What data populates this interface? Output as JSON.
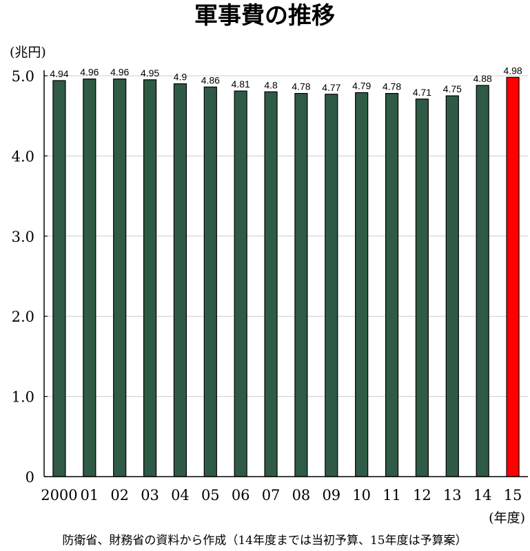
{
  "chart_data": {
    "type": "bar",
    "title": "軍事費の推移",
    "y_unit_label": "(兆円)",
    "x_unit_label": "(年度)",
    "source_note": "防衛省、財務省の資料から作成（14年度までは当初予算、15年度は予算案）",
    "categories": [
      "2000",
      "01",
      "02",
      "03",
      "04",
      "05",
      "06",
      "07",
      "08",
      "09",
      "10",
      "11",
      "12",
      "13",
      "14",
      "15"
    ],
    "values": [
      4.94,
      4.96,
      4.96,
      4.95,
      4.9,
      4.86,
      4.81,
      4.8,
      4.78,
      4.77,
      4.79,
      4.78,
      4.71,
      4.75,
      4.88,
      4.98
    ],
    "value_labels": [
      "4.94",
      "4.96",
      "4.96",
      "4.95",
      "4.9",
      "4.86",
      "4.81",
      "4.8",
      "4.78",
      "4.77",
      "4.79",
      "4.78",
      "4.71",
      "4.75",
      "4.88",
      "4.98"
    ],
    "ylim": [
      0,
      5
    ],
    "yticks": [
      0,
      1,
      2,
      3,
      4,
      5
    ],
    "ytick_labels": [
      "0",
      "1.0",
      "2.0",
      "3.0",
      "4.0",
      "5.0"
    ],
    "grid": true,
    "colors": {
      "bar": "#2f5a46",
      "highlight": "#ff0000",
      "grid": "#cccccc",
      "axis": "#000000"
    },
    "highlight_index": 15
  }
}
